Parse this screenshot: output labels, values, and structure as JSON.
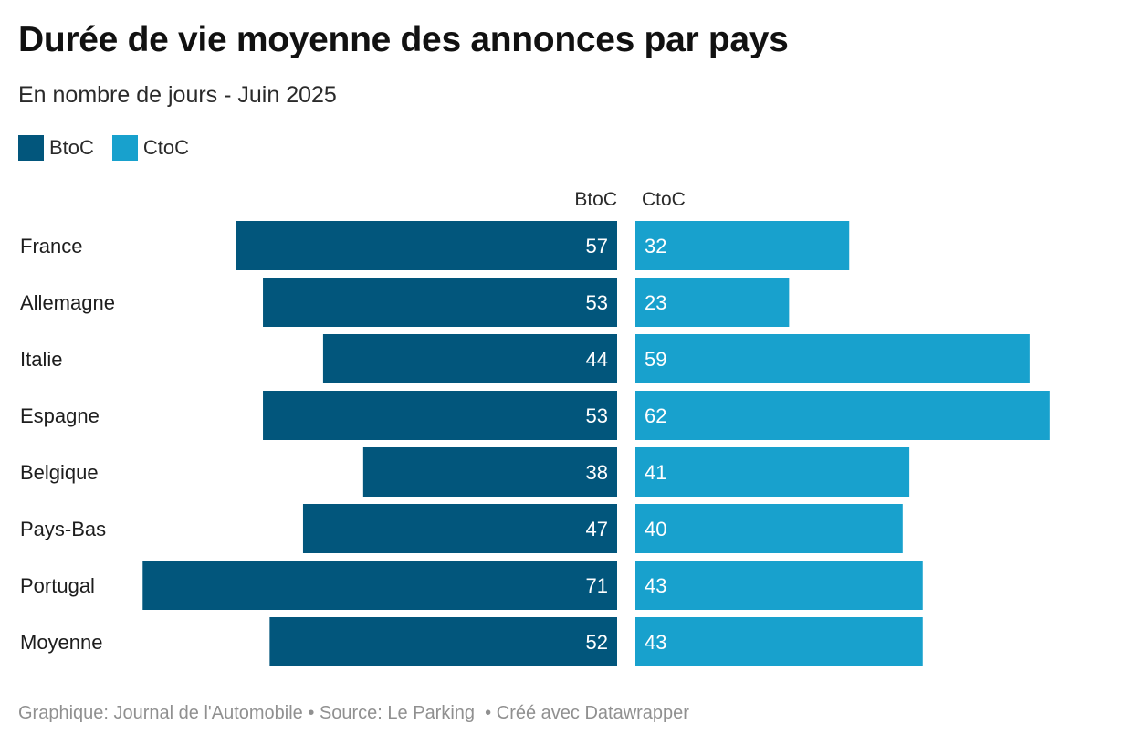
{
  "title": "Durée de vie moyenne des annonces par pays",
  "subtitle": "En nombre de jours - Juin 2025",
  "legend": [
    {
      "label": "BtoC",
      "color": "#02567c"
    },
    {
      "label": "CtoC",
      "color": "#18a1cd"
    }
  ],
  "footer": {
    "credit": "Graphique: Journal de l'Automobile",
    "source": "Source: Le Parking",
    "tool": "Créé avec Datawrapper",
    "separator": "•"
  },
  "chart_data": {
    "type": "bar",
    "orientation": "horizontal-butterfly",
    "categories": [
      "France",
      "Allemagne",
      "Italie",
      "Espagne",
      "Belgique",
      "Pays-Bas",
      "Portugal",
      "Moyenne"
    ],
    "series": [
      {
        "name": "BtoC",
        "color": "#02567c",
        "values": [
          57,
          53,
          44,
          53,
          38,
          47,
          71,
          52
        ]
      },
      {
        "name": "CtoC",
        "color": "#18a1cd",
        "values": [
          32,
          23,
          59,
          62,
          41,
          40,
          43,
          43
        ]
      }
    ],
    "column_headers": [
      "BtoC",
      "CtoC"
    ],
    "xlim": [
      0,
      71
    ],
    "grid": false,
    "legend_position": "top-left"
  }
}
